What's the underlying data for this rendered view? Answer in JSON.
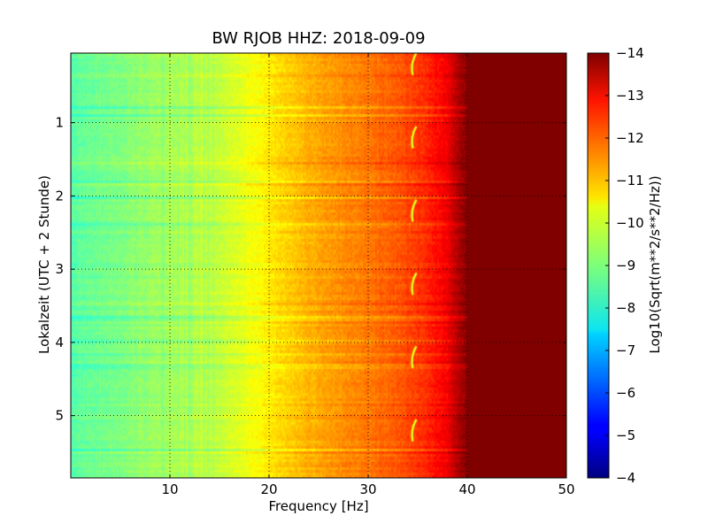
{
  "chart_data": {
    "type": "heatmap",
    "title": "BW RJOB HHZ: 2018-09-09",
    "xlabel": "Frequency [Hz]",
    "ylabel": "Lokalzeit (UTC + 2 Stunde)",
    "xlim": [
      0,
      50
    ],
    "ylim": [
      5.85,
      0.05
    ],
    "x_ticks": [
      10,
      20,
      30,
      40,
      50
    ],
    "y_ticks": [
      1,
      2,
      3,
      4,
      5
    ],
    "y_inverted": true,
    "grid": true,
    "grid_style": "dotted",
    "colormap": "jet",
    "colorbar": {
      "label": "Log10(Sqrt(m**2/s**2/Hz))",
      "range": [
        -14,
        -4
      ],
      "ticks": [
        -4,
        -5,
        -6,
        -7,
        -8,
        -9,
        -10,
        -11,
        -12,
        -13,
        -14
      ]
    },
    "spectral_profile": {
      "frequency_hz": [
        0,
        2,
        5,
        10,
        15,
        18,
        21,
        24,
        27,
        30,
        33,
        36,
        38,
        40,
        50
      ],
      "value": [
        -8.6,
        -8.8,
        -9.0,
        -9.4,
        -9.7,
        -10.1,
        -10.6,
        -11.0,
        -11.3,
        -11.6,
        -11.9,
        -12.4,
        -12.9,
        -14.0,
        -14.0
      ]
    },
    "features": {
      "hourly_tone_frequency_hz": 34.5,
      "hourly_tone_times": [
        0.25,
        1.25,
        2.25,
        3.25,
        4.25,
        5.25
      ],
      "noise_floor_above_hz": 40,
      "noise_floor_value": -14
    }
  }
}
